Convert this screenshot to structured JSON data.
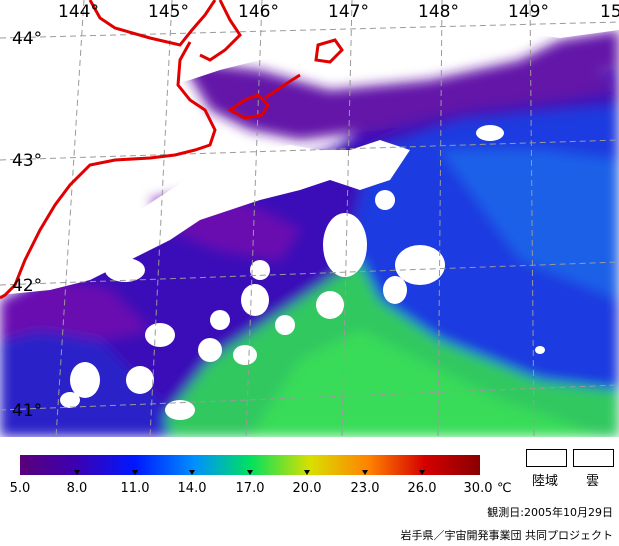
{
  "map": {
    "longitudes": [
      "144°",
      "145°",
      "146°",
      "147°",
      "148°",
      "149°",
      "15"
    ],
    "latitudes": [
      "44°",
      "43°",
      "42°",
      "41°"
    ],
    "colors": {
      "coastline": "#e00000",
      "graticule": "#9a9a9a",
      "land_cloud": "#ffffff",
      "cold": "#6a0dad",
      "mid": "#2030d8",
      "warm": "#22cc55"
    }
  },
  "colorbar": {
    "ticks": [
      "5.0",
      "8.0",
      "11.0",
      "14.0",
      "17.0",
      "20.0",
      "23.0",
      "26.0",
      "30.0"
    ],
    "unit": "℃",
    "colors": [
      "#5a007a",
      "#3c00b0",
      "#0018ff",
      "#0090ff",
      "#00e060",
      "#d8e000",
      "#ff8000",
      "#d40000",
      "#8a0000"
    ]
  },
  "legend": {
    "land_label": "陸域",
    "cloud_label": "雲"
  },
  "footer": {
    "obs_date": "観測日:2005年10月29日",
    "credit": "岩手県／宇宙開発事業団 共同プロジェクト"
  }
}
